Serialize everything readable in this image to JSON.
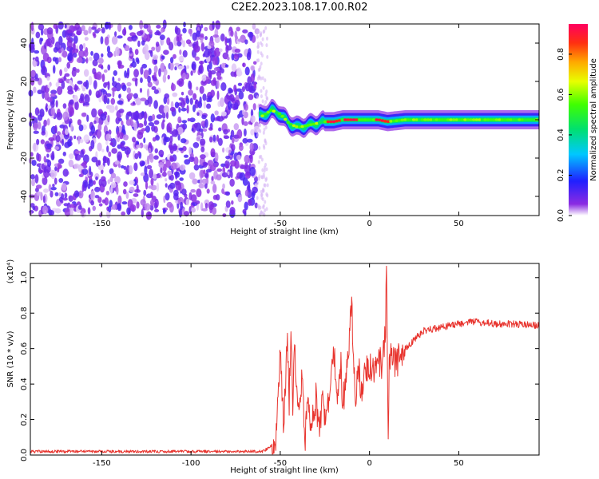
{
  "figure": {
    "title": "C2E2.2023.108.17.00.R02"
  },
  "chart_data": [
    {
      "type": "heatmap",
      "xlabel": "Height of straight line (km)",
      "ylabel": "Frequency (Hz)",
      "xlim": [
        -190,
        95
      ],
      "ylim": [
        -50,
        50
      ],
      "xticks": [
        -150,
        -100,
        -50,
        0,
        50
      ],
      "yticks": [
        -40,
        -20,
        0,
        20,
        40
      ],
      "colorbar": {
        "label": "Normalized spectral amplitude",
        "range": [
          0,
          0.95
        ],
        "ticks": [
          0.0,
          0.2,
          0.4,
          0.6,
          0.8
        ],
        "colormap": "rainbow (violet-blue-cyan-green-yellow-red)"
      },
      "regions": [
        {
          "x_range": [
            -190,
            -63
          ],
          "frequency_range": [
            -50,
            50
          ],
          "amplitude": "low (0.0-0.15), scattered noise"
        },
        {
          "x_range": [
            -63,
            -25
          ],
          "frequency_range": [
            -6,
            8
          ],
          "amplitude": "0.2-0.6, wavy signal band"
        },
        {
          "x_range": [
            -25,
            95
          ],
          "frequency_range": [
            -4,
            4
          ],
          "amplitude": "0.3-0.95, narrow band centred near 0 Hz"
        }
      ],
      "ridge": {
        "x": [
          -60,
          -55,
          -50,
          -45,
          -40,
          -35,
          -30,
          -25,
          -20,
          -15,
          -10,
          -5,
          0,
          5,
          10,
          20,
          40,
          60,
          80,
          95
        ],
        "freq": [
          2,
          5,
          3,
          -2,
          -4,
          -3,
          -2,
          -1,
          -1,
          0,
          0,
          0,
          0,
          0,
          -1,
          0,
          0,
          0,
          0,
          0
        ]
      },
      "peak_amplitude_locations_km": [
        -20,
        -10,
        8
      ]
    },
    {
      "type": "line",
      "xlabel": "Height of straight line (km)",
      "ylabel": "SNR (10 * v/v)",
      "y_multiplier": "(x10⁴)",
      "xlim": [
        -190,
        95
      ],
      "ylim": [
        0,
        1.08
      ],
      "xticks": [
        -150,
        -100,
        -50,
        0,
        50
      ],
      "yticks": [
        0.0,
        0.2,
        0.4,
        0.6,
        0.8,
        1.0
      ],
      "color": "#e8342e",
      "series": [
        {
          "x": [
            -190,
            -150,
            -100,
            -60,
            -55,
            -52,
            -50,
            -48,
            -46,
            -45,
            -44,
            -43,
            -42,
            -40,
            -38,
            -36,
            -35,
            -33,
            -30,
            -28,
            -26,
            -25,
            -23,
            -20,
            -18,
            -16,
            -15,
            -12,
            -10,
            -8,
            -6,
            -5,
            -3,
            0,
            3,
            5,
            7,
            8,
            9,
            9.5,
            10,
            10.5,
            11,
            12,
            15,
            20,
            25,
            30,
            40,
            50,
            60,
            70,
            80,
            95
          ],
          "values": [
            0.02,
            0.02,
            0.02,
            0.02,
            0.05,
            0.12,
            0.6,
            0.15,
            0.7,
            0.3,
            0.75,
            0.25,
            0.62,
            0.2,
            0.45,
            0.1,
            0.35,
            0.15,
            0.32,
            0.12,
            0.38,
            0.2,
            0.3,
            0.62,
            0.25,
            0.5,
            0.28,
            0.55,
            0.84,
            0.3,
            0.5,
            0.35,
            0.45,
            0.5,
            0.45,
            0.55,
            0.5,
            0.6,
            0.7,
            1.07,
            0.5,
            0.12,
            0.48,
            0.55,
            0.52,
            0.6,
            0.65,
            0.7,
            0.72,
            0.74,
            0.75,
            0.74,
            0.74,
            0.73
          ]
        }
      ]
    }
  ]
}
